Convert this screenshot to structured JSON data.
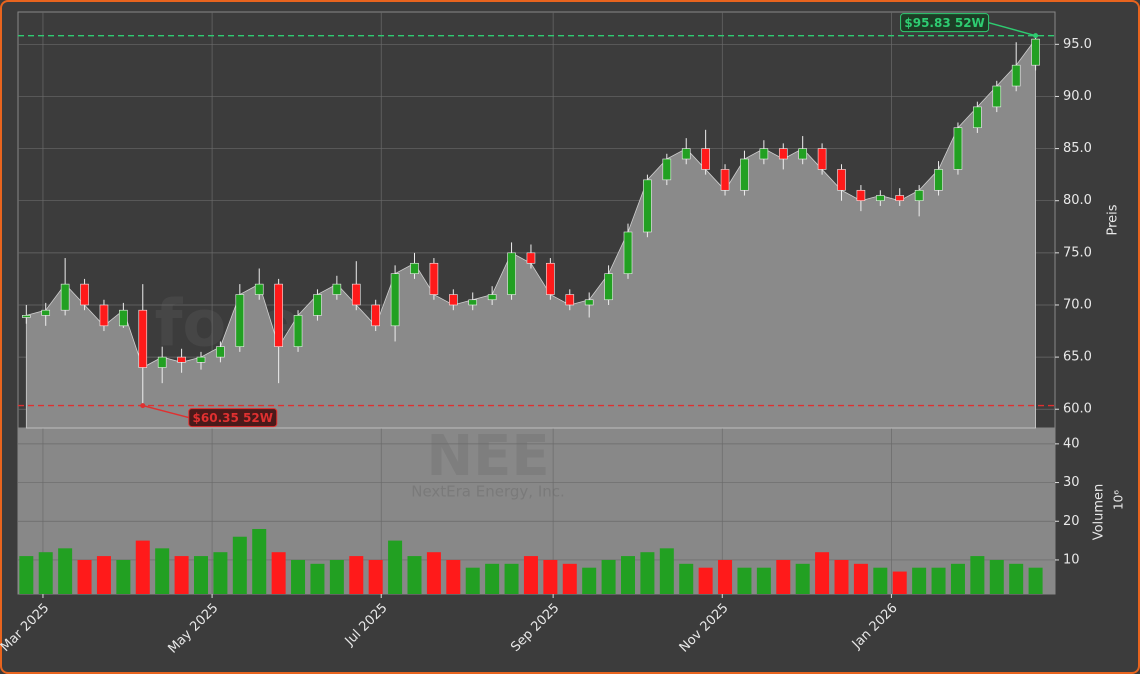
{
  "chart_data": {
    "type": "candlestick",
    "watermark": "forexsignale.trade",
    "symbol": "NEE",
    "company": "NextEra Energy, Inc.",
    "x": [
      3,
      10,
      17,
      24,
      31,
      38,
      45,
      52,
      59,
      66,
      73,
      80,
      87,
      94,
      101,
      108,
      115,
      122,
      129,
      136,
      143,
      150,
      157,
      164,
      171,
      178,
      185,
      192,
      199,
      206,
      213,
      220,
      227,
      234,
      241,
      248,
      255,
      262,
      269,
      276,
      283,
      290,
      297,
      304,
      311,
      318,
      325,
      332,
      339,
      346,
      353,
      360,
      367
    ],
    "open": [
      68.8,
      69,
      69.5,
      72,
      70,
      68,
      69.5,
      64,
      65,
      64.5,
      65,
      66,
      71,
      72,
      66,
      69,
      71,
      72,
      70,
      68,
      73,
      74,
      71,
      70,
      70.5,
      71,
      75,
      74,
      71,
      70,
      70.5,
      73,
      77,
      82,
      84,
      85,
      83,
      81,
      84,
      85,
      84,
      85,
      83,
      81,
      80,
      80.5,
      80,
      81,
      83,
      87,
      89,
      91,
      93
    ],
    "high": [
      70,
      70.2,
      74.5,
      72.5,
      70.5,
      70.2,
      72,
      66,
      65.8,
      65.5,
      66.5,
      72,
      73.5,
      72.5,
      69.5,
      71.5,
      72.8,
      74.2,
      70.5,
      73.8,
      75,
      74.5,
      71.5,
      71.2,
      71.8,
      76,
      75.8,
      74.5,
      71.5,
      71.2,
      73.8,
      77.8,
      82.5,
      84.5,
      86,
      86.8,
      83.5,
      84.8,
      85.8,
      85.5,
      86.2,
      85.5,
      83.5,
      81.5,
      81,
      81.2,
      81.5,
      83.8,
      87.5,
      89.5,
      91.5,
      95.2,
      95.83
    ],
    "low": [
      68.2,
      68,
      69,
      69.5,
      67.5,
      67.8,
      60.35,
      62.5,
      63.5,
      63.8,
      64.5,
      65.5,
      70.5,
      62.5,
      65.5,
      68.5,
      70.5,
      69.5,
      67.5,
      66.5,
      72.5,
      70.5,
      69.5,
      69.5,
      70,
      70.5,
      73.5,
      70.5,
      69.5,
      68.8,
      70,
      72.5,
      76.5,
      81.5,
      83.5,
      82.5,
      80.5,
      80.5,
      83.5,
      83,
      83.5,
      82.5,
      80,
      79,
      79.5,
      79.5,
      78.5,
      80.5,
      82.5,
      86.5,
      88.5,
      90.5,
      92.5
    ],
    "close": [
      69,
      69.5,
      72,
      70,
      68,
      69.5,
      64,
      65,
      64.5,
      65,
      66,
      71,
      72,
      66,
      69,
      71,
      72,
      70,
      68,
      73,
      74,
      71,
      70,
      70.5,
      71,
      75,
      74,
      71,
      70,
      70.5,
      73,
      77,
      82,
      84,
      85,
      83,
      81,
      84,
      85,
      84,
      85,
      83,
      81,
      80,
      80.5,
      80,
      81,
      83,
      87,
      89,
      91,
      93,
      95.5
    ],
    "up_color": "#22a022",
    "down_color": "#ff1a1a",
    "xlim": [
      0,
      374
    ],
    "xticks": [
      {
        "value": 9,
        "label": "Mar 2025"
      },
      {
        "value": 70,
        "label": "May 2025"
      },
      {
        "value": 131,
        "label": "Jul 2025"
      },
      {
        "value": 193,
        "label": "Sep 2025"
      },
      {
        "value": 254,
        "label": "Nov 2025"
      },
      {
        "value": 315,
        "label": "Jan 2026"
      }
    ],
    "ylabel": "Preis",
    "ylim": [
      58.2,
      98.1
    ],
    "yticks": [
      {
        "value": 60,
        "label": "60.0"
      },
      {
        "value": 65,
        "label": "65.0"
      },
      {
        "value": 70,
        "label": "70.0"
      },
      {
        "value": 75,
        "label": "75.0"
      },
      {
        "value": 80,
        "label": "80.0"
      },
      {
        "value": 85,
        "label": "85.0"
      },
      {
        "value": 90,
        "label": "90.0"
      },
      {
        "value": 95,
        "label": "95.0"
      }
    ],
    "grid": true,
    "annotations": [
      {
        "x": 367,
        "value": 95.83,
        "label": "$95.83 52W",
        "color": "#2ecc71"
      },
      {
        "x": 45,
        "value": 60.35,
        "label": "$60.35 52W",
        "color": "#e03030"
      }
    ],
    "volume": {
      "label": "Volumen",
      "multiplier": "10⁶",
      "values": [
        11,
        12,
        13,
        10,
        11,
        10,
        15,
        13,
        11,
        11,
        12,
        16,
        18,
        12,
        10,
        9,
        10,
        11,
        10,
        15,
        11,
        12,
        10,
        8,
        9,
        9,
        11,
        10,
        9,
        8,
        10,
        11,
        12,
        13,
        9,
        8,
        10,
        8,
        8,
        10,
        9,
        12,
        10,
        9,
        8,
        7,
        8,
        8,
        9,
        11,
        10,
        9,
        8
      ],
      "ylim": [
        1.2,
        44.1
      ],
      "yticks": [
        10,
        20,
        30,
        40
      ]
    }
  }
}
